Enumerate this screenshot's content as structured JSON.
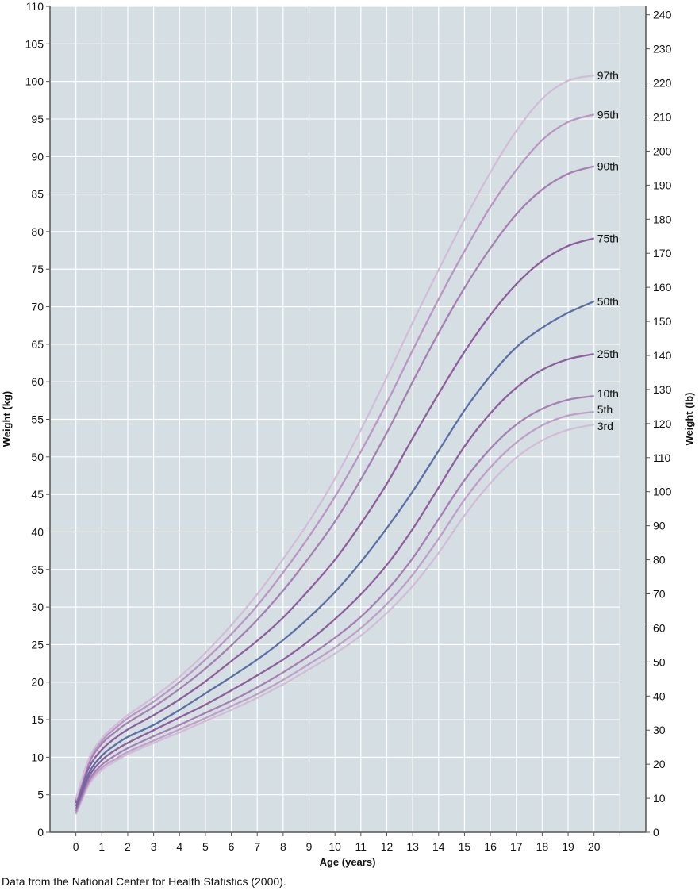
{
  "chart_data": {
    "type": "line",
    "xlabel": "Age (years)",
    "ylabel": "Weight (kg)",
    "ylabel_right": "Weight (lb)",
    "xlim": [
      -1,
      22
    ],
    "ylim": [
      0,
      110
    ],
    "ylim_right": [
      0,
      242.5
    ],
    "x_ticks": [
      "0",
      "1",
      "2",
      "3",
      "4",
      "5",
      "6",
      "7",
      "8",
      "9",
      "10",
      "11",
      "12",
      "13",
      "14",
      "15",
      "16",
      "17",
      "18",
      "19",
      "20",
      ""
    ],
    "y_ticks": [
      0,
      5,
      10,
      15,
      20,
      25,
      30,
      35,
      40,
      45,
      50,
      55,
      60,
      65,
      70,
      75,
      80,
      85,
      90,
      95,
      100,
      105,
      110
    ],
    "y_ticks_right": [
      0,
      10,
      20,
      30,
      40,
      50,
      60,
      70,
      80,
      90,
      100,
      110,
      120,
      130,
      140,
      150,
      160,
      170,
      180,
      190,
      200,
      210,
      220,
      230,
      240
    ],
    "grid": true,
    "background_color": "#d5dee3",
    "x": [
      0,
      0.5,
      1,
      1.5,
      2,
      3,
      4,
      5,
      6,
      7,
      8,
      9,
      10,
      11,
      12,
      13,
      14,
      15,
      16,
      17,
      18,
      19,
      20
    ],
    "series": [
      {
        "name": "3rd",
        "color": "#d2bdd8",
        "values": [
          2.4,
          6.3,
          8.3,
          9.4,
          10.4,
          11.9,
          13.3,
          14.8,
          16.3,
          17.9,
          19.7,
          21.7,
          23.8,
          26.2,
          29.2,
          32.8,
          37.2,
          42.2,
          46.5,
          49.9,
          52.2,
          53.6,
          54.3
        ]
      },
      {
        "name": "5th",
        "color": "#bea0c8",
        "values": [
          2.5,
          6.6,
          8.6,
          9.7,
          10.7,
          12.2,
          13.7,
          15.2,
          16.8,
          18.4,
          20.3,
          22.4,
          24.6,
          27.2,
          30.4,
          34.3,
          39.1,
          44.3,
          48.6,
          51.9,
          54.2,
          55.5,
          56.0
        ]
      },
      {
        "name": "10th",
        "color": "#a67fb3",
        "values": [
          2.8,
          6.9,
          9.0,
          10.2,
          11.2,
          12.8,
          14.3,
          15.9,
          17.5,
          19.3,
          21.3,
          23.5,
          25.9,
          28.7,
          32.2,
          36.5,
          41.7,
          46.9,
          51.1,
          54.3,
          56.4,
          57.6,
          58.1
        ]
      },
      {
        "name": "25th",
        "color": "#8d5f9c",
        "values": [
          3.1,
          7.4,
          9.6,
          10.9,
          11.9,
          13.6,
          15.3,
          17.0,
          18.9,
          20.9,
          23.0,
          25.5,
          28.4,
          31.7,
          35.6,
          40.4,
          45.9,
          51.4,
          55.8,
          59.2,
          61.6,
          63.0,
          63.7
        ]
      },
      {
        "name": "50th",
        "color": "#5d6fa6",
        "values": [
          3.5,
          7.9,
          10.2,
          11.6,
          12.7,
          14.3,
          16.3,
          18.5,
          20.7,
          23.0,
          25.6,
          28.6,
          32.0,
          36.0,
          40.5,
          45.4,
          50.8,
          56.2,
          60.8,
          64.6,
          67.2,
          69.2,
          70.7
        ]
      },
      {
        "name": "75th",
        "color": "#8d5f9c",
        "values": [
          3.9,
          8.6,
          11.0,
          12.5,
          13.7,
          15.6,
          17.7,
          20.1,
          22.8,
          25.5,
          28.6,
          32.3,
          36.3,
          41.1,
          46.4,
          52.5,
          58.4,
          64.0,
          68.9,
          73.0,
          76.1,
          78.1,
          79.1
        ]
      },
      {
        "name": "90th",
        "color": "#a67fb3",
        "values": [
          4.2,
          9.2,
          11.8,
          13.3,
          14.6,
          16.7,
          19.1,
          21.8,
          24.9,
          28.3,
          32.2,
          36.6,
          41.4,
          47.0,
          53.2,
          60.0,
          66.5,
          72.5,
          77.8,
          82.3,
          85.6,
          87.7,
          88.7
        ]
      },
      {
        "name": "95th",
        "color": "#b996c4",
        "values": [
          4.3,
          9.6,
          12.2,
          13.8,
          15.2,
          17.4,
          20.0,
          23.0,
          26.4,
          30.2,
          34.6,
          39.4,
          44.7,
          50.7,
          57.2,
          64.2,
          71.0,
          77.4,
          83.3,
          88.2,
          92.2,
          94.6,
          95.6
        ]
      },
      {
        "name": "97th",
        "color": "#d2bdd8",
        "values": [
          4.5,
          9.8,
          12.5,
          14.2,
          15.6,
          18.0,
          20.7,
          23.9,
          27.6,
          31.7,
          36.4,
          41.4,
          47.1,
          53.6,
          60.6,
          67.9,
          74.9,
          81.6,
          87.9,
          93.4,
          97.7,
          100.1,
          100.8
        ]
      }
    ]
  },
  "footnote": "Data from the National Center for Health Statistics (2000)."
}
